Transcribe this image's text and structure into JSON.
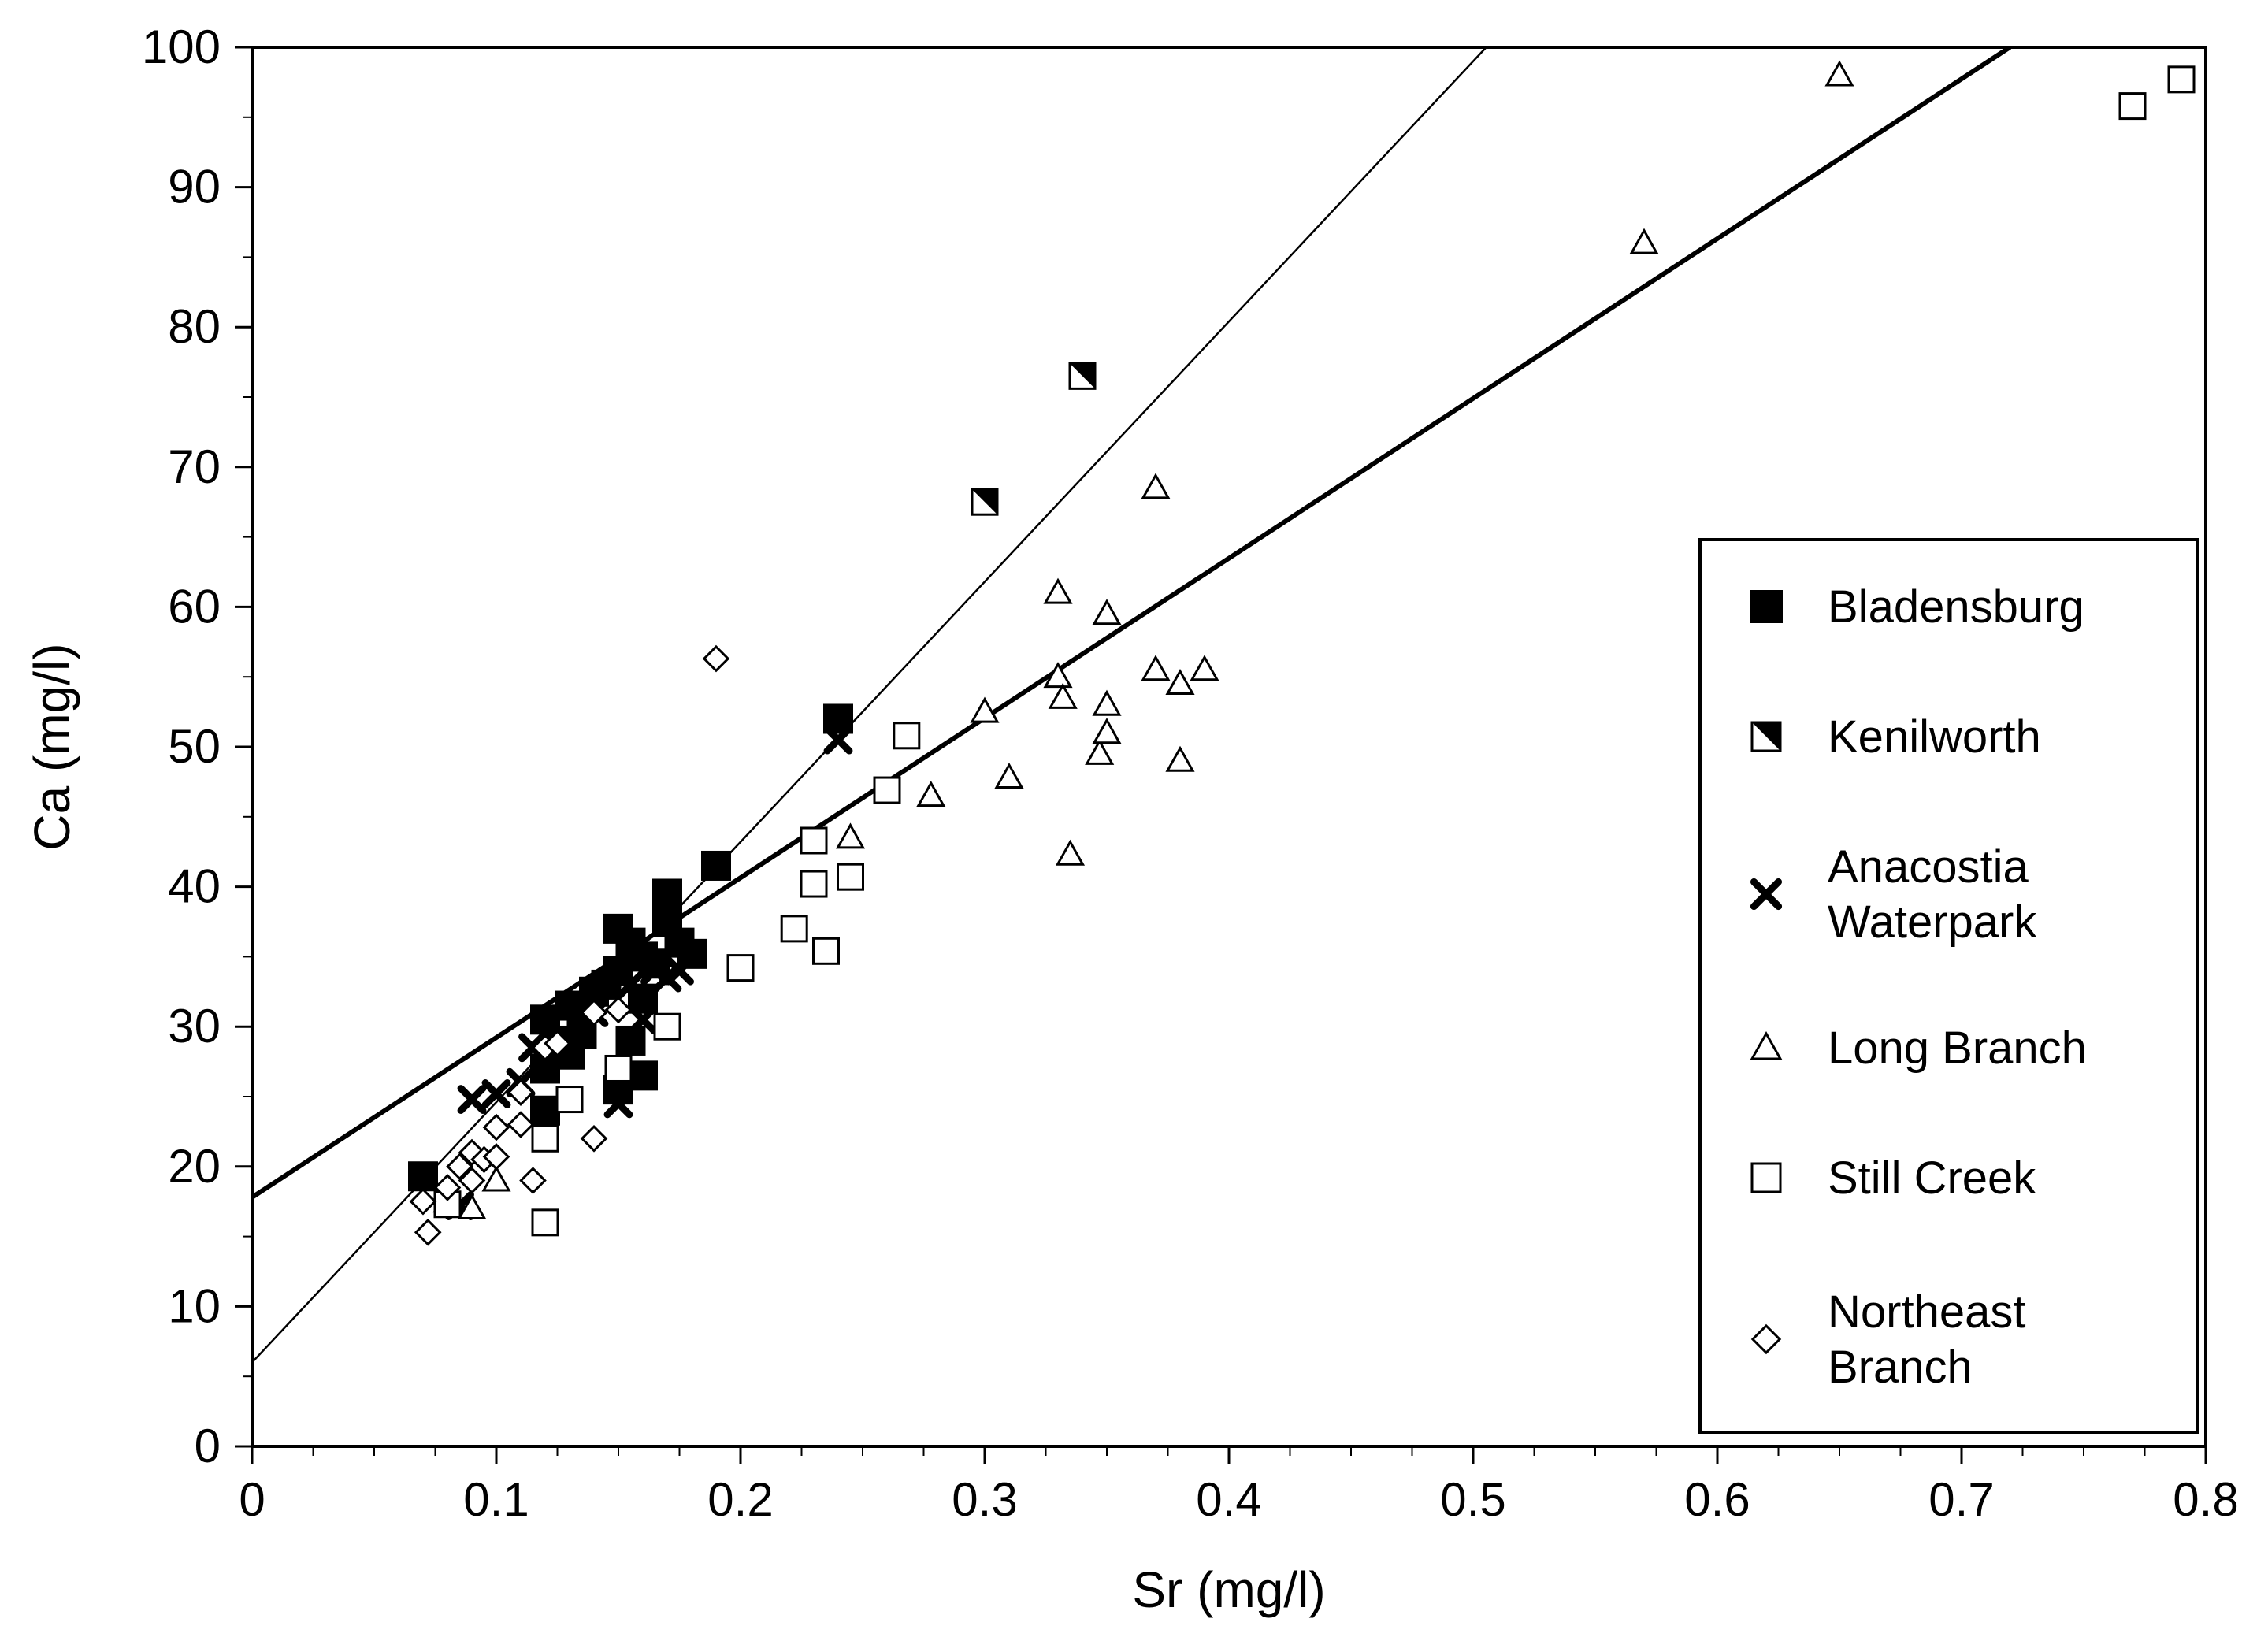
{
  "chart_data": {
    "type": "scatter",
    "title": "",
    "xlabel": "Sr (mg/l)",
    "ylabel": "Ca (mg/l)",
    "xlim": [
      0,
      0.8
    ],
    "ylim": [
      0,
      100
    ],
    "x_ticks": [
      0,
      0.1,
      0.2,
      0.3,
      0.4,
      0.5,
      0.6,
      0.7,
      0.8
    ],
    "x_tick_labels": [
      "0",
      "0.1",
      "0.2",
      "0.3",
      "0.4",
      "0.5",
      "0.6",
      "0.7",
      "0.8"
    ],
    "y_ticks": [
      0,
      10,
      20,
      30,
      40,
      50,
      60,
      70,
      80,
      90,
      100
    ],
    "y_tick_labels": [
      "0",
      "10",
      "20",
      "30",
      "40",
      "50",
      "60",
      "70",
      "80",
      "90",
      "100"
    ],
    "grid": false,
    "legend_position": "right",
    "series": [
      {
        "name": "Bladensburg",
        "label_lines": [
          "Bladensburg"
        ],
        "marker": "filled-square",
        "points": [
          [
            0.07,
            19.3
          ],
          [
            0.12,
            24
          ],
          [
            0.12,
            27
          ],
          [
            0.12,
            30.5
          ],
          [
            0.125,
            29
          ],
          [
            0.13,
            31.5
          ],
          [
            0.13,
            28
          ],
          [
            0.135,
            29.5
          ],
          [
            0.14,
            32.5
          ],
          [
            0.145,
            33
          ],
          [
            0.15,
            37
          ],
          [
            0.15,
            34
          ],
          [
            0.155,
            36
          ],
          [
            0.155,
            29
          ],
          [
            0.16,
            35
          ],
          [
            0.16,
            32
          ],
          [
            0.165,
            34.5
          ],
          [
            0.17,
            39.5
          ],
          [
            0.17,
            37.5
          ],
          [
            0.175,
            36
          ],
          [
            0.18,
            35.2
          ],
          [
            0.19,
            41.5
          ],
          [
            0.24,
            52
          ],
          [
            0.15,
            25.5
          ],
          [
            0.16,
            26.5
          ]
        ]
      },
      {
        "name": "Kenilworth",
        "label_lines": [
          "Kenilworth"
        ],
        "marker": "half-square",
        "points": [
          [
            0.3,
            67.5
          ],
          [
            0.34,
            76.5
          ]
        ]
      },
      {
        "name": "Anacostia Waterpark",
        "label_lines": [
          "Anacostia",
          "Waterpark"
        ],
        "marker": "x",
        "points": [
          [
            0.085,
            17.2
          ],
          [
            0.09,
            24.8
          ],
          [
            0.1,
            25.2
          ],
          [
            0.11,
            26
          ],
          [
            0.115,
            28.5
          ],
          [
            0.12,
            29.5
          ],
          [
            0.13,
            29
          ],
          [
            0.14,
            31
          ],
          [
            0.15,
            24.5
          ],
          [
            0.155,
            33
          ],
          [
            0.16,
            30.5
          ],
          [
            0.165,
            34
          ],
          [
            0.17,
            33.5
          ],
          [
            0.175,
            34
          ],
          [
            0.24,
            50.5
          ]
        ]
      },
      {
        "name": "Long Branch",
        "label_lines": [
          "Long Branch"
        ],
        "marker": "open-triangle",
        "points": [
          [
            0.08,
            17.5
          ],
          [
            0.09,
            17
          ],
          [
            0.1,
            19
          ],
          [
            0.245,
            43.5
          ],
          [
            0.278,
            46.5
          ],
          [
            0.3,
            52.5
          ],
          [
            0.31,
            47.8
          ],
          [
            0.33,
            61
          ],
          [
            0.33,
            55
          ],
          [
            0.332,
            53.5
          ],
          [
            0.335,
            42.3
          ],
          [
            0.347,
            49.5
          ],
          [
            0.35,
            59.5
          ],
          [
            0.35,
            53
          ],
          [
            0.35,
            51
          ],
          [
            0.37,
            68.5
          ],
          [
            0.37,
            55.5
          ],
          [
            0.38,
            54.5
          ],
          [
            0.38,
            49
          ],
          [
            0.39,
            55.5
          ],
          [
            0.57,
            86
          ],
          [
            0.65,
            98
          ]
        ]
      },
      {
        "name": "Still Creek",
        "label_lines": [
          "Still Creek"
        ],
        "marker": "open-square",
        "points": [
          [
            0.08,
            17.3
          ],
          [
            0.12,
            16
          ],
          [
            0.12,
            22
          ],
          [
            0.13,
            24.8
          ],
          [
            0.15,
            27
          ],
          [
            0.17,
            30
          ],
          [
            0.2,
            34.2
          ],
          [
            0.222,
            37
          ],
          [
            0.23,
            40.2
          ],
          [
            0.23,
            43.3
          ],
          [
            0.235,
            35.4
          ],
          [
            0.245,
            40.7
          ],
          [
            0.26,
            46.9
          ],
          [
            0.268,
            50.8
          ],
          [
            0.77,
            95.8
          ],
          [
            0.79,
            97.7
          ]
        ]
      },
      {
        "name": "Northeast Branch",
        "label_lines": [
          "Northeast",
          "Branch"
        ],
        "marker": "open-diamond",
        "points": [
          [
            0.07,
            17.5
          ],
          [
            0.072,
            15.3
          ],
          [
            0.08,
            18.5
          ],
          [
            0.085,
            20
          ],
          [
            0.09,
            19
          ],
          [
            0.09,
            21
          ],
          [
            0.095,
            20.5
          ],
          [
            0.1,
            22.8
          ],
          [
            0.1,
            20.7
          ],
          [
            0.11,
            23
          ],
          [
            0.11,
            25.3
          ],
          [
            0.115,
            19
          ],
          [
            0.12,
            28.5
          ],
          [
            0.125,
            28.8
          ],
          [
            0.14,
            22
          ],
          [
            0.14,
            31
          ],
          [
            0.15,
            31.2
          ],
          [
            0.19,
            56.3
          ]
        ]
      }
    ],
    "fit_lines": [
      {
        "name": "steep regression line",
        "intercept": 6,
        "slope": 186,
        "style": "thin"
      },
      {
        "name": "shallow regression line",
        "intercept": 17.8,
        "slope": 114.2,
        "style": "thick"
      }
    ]
  }
}
